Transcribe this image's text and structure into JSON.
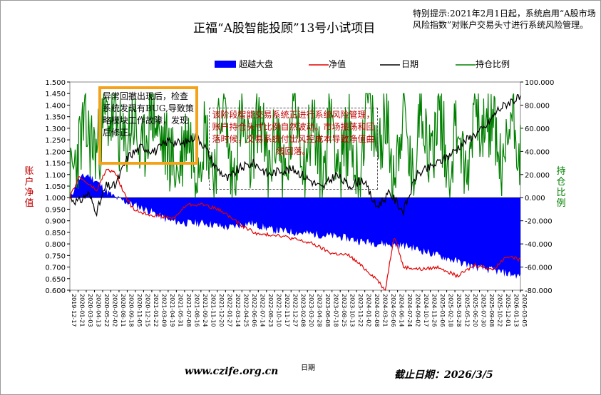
{
  "title": "正福“A股智能投顾”13号小试项目",
  "notice": "特别提示:2021年2月1日起，系统启用“A股市场风险指数”对账户交易头寸进行系统风险管理。",
  "legend": [
    {
      "name": "超越大盘",
      "color": "#0000ff",
      "kind": "area"
    },
    {
      "name": "净值",
      "color": "#e00000",
      "kind": "line"
    },
    {
      "name": "日期",
      "color": "#000000",
      "kind": "line"
    },
    {
      "name": "持仓比例",
      "color": "#008000",
      "kind": "line"
    }
  ],
  "annotations": {
    "bug_note": "异常回撤出现后，检查系统发现有BUG,导致策略模块工作故障，发现后修正。",
    "risk_note": "该阶段智能交易系统正进行系统风险管理，账户持仓头寸比例自然波动。市场振荡和回落时候，交易系统付出风控成本导致净值曲线回落。"
  },
  "axes": {
    "left_label": "账户净值",
    "right_label": "持仓比例",
    "x_label": "日期"
  },
  "footer": {
    "url": "www.czife.org.cn",
    "deadline": "截止日期：2026/3/5"
  },
  "colors": {
    "area": "#0000ff",
    "net_value": "#e00000",
    "index": "#000000",
    "position": "#008000",
    "annotation_box": "#f5a21b"
  },
  "chart_data": {
    "type": "line",
    "x_range": [
      "2019-12-17",
      "2026-03-05"
    ],
    "x_tick_labels": [
      "2019-12-17",
      "2020-01-21",
      "2020-03-03",
      "2020-04-13",
      "2020-05-22",
      "2020-07-02",
      "2020-08-11",
      "2020-09-18",
      "2020-11-05",
      "2020-12-15",
      "2021-01-22",
      "2021-03-09",
      "2021-04-19",
      "2021-05-31",
      "2021-07-08",
      "2021-08-16",
      "2021-09-24",
      "2021-11-10",
      "2021-12-20",
      "2022-01-27",
      "2022-03-14",
      "2022-04-25",
      "2022-06-06",
      "2022-07-14",
      "2022-08-23",
      "2022-10-10",
      "2022-11-17",
      "2022-12-27",
      "2023-02-08",
      "2023-03-20",
      "2023-04-28",
      "2023-06-08",
      "2023-07-18",
      "2023-08-25",
      "2023-10-13",
      "2023-11-22",
      "2024-01-02",
      "2024-02-08",
      "2024-03-21",
      "2024-05-06",
      "2024-06-14",
      "2024-07-24",
      "2024-09-02",
      "2024-10-17",
      "2024-11-26",
      "2025-01-06",
      "2025-02-18",
      "2025-03-28",
      "2025-05-12",
      "2025-06-20",
      "2025-07-30",
      "2025-09-08",
      "2025-10-22",
      "2025-12-01",
      "2026-01-13",
      "2026-03-05"
    ],
    "left_axis": {
      "min": 0.6,
      "max": 1.5,
      "ticks": [
        "0.600",
        "0.650",
        "0.700",
        "0.750",
        "0.800",
        "0.850",
        "0.900",
        "0.950",
        "1.000",
        "1.050",
        "1.100",
        "1.150",
        "1.200",
        "1.250",
        "1.300",
        "1.350",
        "1.400",
        "1.450",
        "1.500"
      ]
    },
    "right_axis": {
      "min": -80,
      "max": 100,
      "ticks": [
        "-80.000",
        "-60.000",
        "-40.000",
        "-20.000",
        "0.000",
        "20.000",
        "40.000",
        "60.000",
        "80.000",
        "100.000"
      ]
    },
    "series": [
      {
        "name": "超越大盘",
        "type": "area",
        "axis": "left",
        "baseline": 1.0,
        "t": [
          0,
          0.02,
          0.04,
          0.06,
          0.08,
          0.1,
          0.14,
          0.18,
          0.22,
          0.26,
          0.3,
          0.35,
          0.4,
          0.45,
          0.5,
          0.55,
          0.6,
          0.65,
          0.7,
          0.75,
          0.8,
          0.85,
          0.9,
          0.95,
          1.0
        ],
        "values": [
          1.0,
          1.08,
          1.1,
          1.07,
          1.03,
          1.0,
          0.97,
          0.94,
          0.9,
          0.89,
          0.89,
          0.87,
          0.89,
          0.86,
          0.85,
          0.84,
          0.83,
          0.81,
          0.8,
          0.79,
          0.76,
          0.73,
          0.7,
          0.68,
          0.66
        ]
      },
      {
        "name": "净值",
        "type": "line",
        "axis": "left",
        "t": [
          0,
          0.02,
          0.04,
          0.06,
          0.08,
          0.1,
          0.12,
          0.14,
          0.17,
          0.2,
          0.23,
          0.26,
          0.3,
          0.34,
          0.38,
          0.42,
          0.46,
          0.5,
          0.54,
          0.58,
          0.62,
          0.65,
          0.68,
          0.7,
          0.72,
          0.74,
          0.78,
          0.82,
          0.86,
          0.9,
          0.94,
          0.97,
          1.0
        ],
        "values": [
          1.0,
          1.09,
          1.06,
          1.03,
          1.12,
          1.11,
          1.02,
          0.95,
          0.93,
          0.92,
          0.91,
          0.97,
          0.97,
          0.94,
          0.88,
          0.84,
          0.84,
          0.82,
          0.8,
          0.76,
          0.75,
          0.7,
          0.65,
          0.6,
          0.84,
          0.7,
          0.69,
          0.7,
          0.66,
          0.71,
          0.69,
          0.75,
          0.73
        ]
      },
      {
        "name": "日期",
        "type": "line",
        "axis": "left",
        "t": [
          0,
          0.02,
          0.04,
          0.06,
          0.08,
          0.1,
          0.13,
          0.16,
          0.19,
          0.22,
          0.25,
          0.28,
          0.3,
          0.32,
          0.35,
          0.38,
          0.41,
          0.44,
          0.47,
          0.5,
          0.53,
          0.56,
          0.59,
          0.62,
          0.65,
          0.68,
          0.71,
          0.74,
          0.77,
          0.8,
          0.84,
          0.88,
          0.92,
          0.95,
          0.98,
          1.0
        ],
        "values": [
          1.0,
          0.98,
          1.02,
          0.94,
          1.05,
          1.05,
          1.18,
          1.22,
          1.2,
          1.25,
          1.23,
          1.27,
          1.22,
          1.14,
          1.08,
          1.13,
          1.15,
          1.1,
          1.12,
          1.12,
          1.08,
          1.04,
          1.1,
          1.05,
          1.08,
          0.96,
          1.02,
          0.94,
          1.1,
          1.13,
          1.18,
          1.25,
          1.3,
          1.38,
          1.42,
          1.43
        ]
      },
      {
        "name": "持仓比例",
        "type": "line",
        "axis": "right",
        "t": [
          0,
          0.03,
          0.06,
          0.08,
          0.1,
          0.12,
          0.14,
          0.16,
          0.18,
          0.2,
          0.22,
          0.24,
          0.26,
          0.28,
          0.3,
          0.32,
          0.34,
          0.36,
          0.38,
          0.4,
          0.42,
          0.44,
          0.46,
          0.48,
          0.5,
          0.52,
          0.54,
          0.56,
          0.58,
          0.6,
          0.62,
          0.64,
          0.66,
          0.68,
          0.7,
          0.72,
          0.74,
          0.76,
          0.78,
          0.8,
          0.82,
          0.84,
          0.86,
          0.88,
          0.9,
          0.92,
          0.94,
          0.96,
          0.98,
          1.0
        ],
        "values": [
          10,
          60,
          40,
          70,
          65,
          40,
          70,
          30,
          80,
          50,
          40,
          20,
          60,
          30,
          60,
          20,
          90,
          10,
          70,
          30,
          80,
          20,
          60,
          10,
          90,
          30,
          70,
          10,
          80,
          20,
          60,
          10,
          90,
          40,
          70,
          20,
          80,
          10,
          90,
          30,
          80,
          20,
          70,
          10,
          90,
          50,
          70,
          15,
          80,
          40
        ]
      }
    ]
  }
}
